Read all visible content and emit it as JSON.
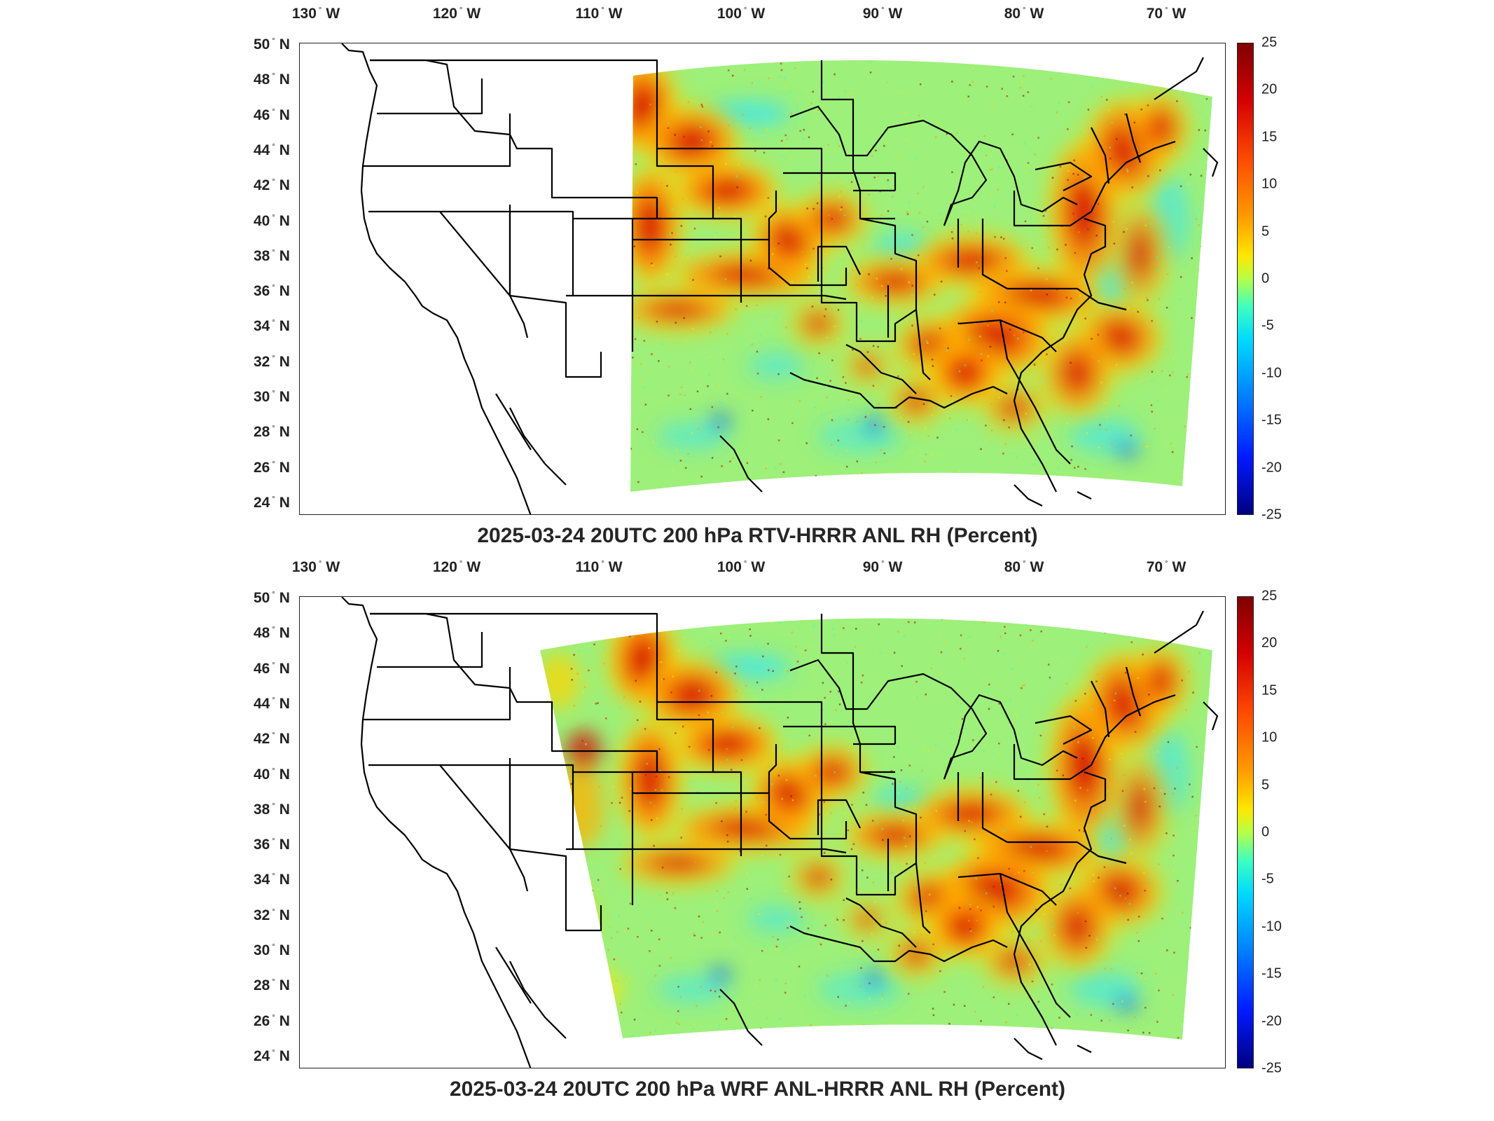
{
  "panels": [
    {
      "title": "2025-03-24 20UTC 200 hPa RTV-HRRR ANL RH (Percent)",
      "domain": "narrow"
    },
    {
      "title": "2025-03-24 20UTC 200 hPa WRF ANL-HRRR ANL RH (Percent)",
      "domain": "wide"
    }
  ],
  "axes": {
    "lon_labels": [
      {
        "deg": "130",
        "hem": "W"
      },
      {
        "deg": "120",
        "hem": "W"
      },
      {
        "deg": "110",
        "hem": "W"
      },
      {
        "deg": "100",
        "hem": "W"
      },
      {
        "deg": "90",
        "hem": "W"
      },
      {
        "deg": "80",
        "hem": "W"
      },
      {
        "deg": "70",
        "hem": "W"
      }
    ],
    "lat_labels": [
      {
        "deg": "50",
        "hem": "N"
      },
      {
        "deg": "48",
        "hem": "N"
      },
      {
        "deg": "46",
        "hem": "N"
      },
      {
        "deg": "44",
        "hem": "N"
      },
      {
        "deg": "42",
        "hem": "N"
      },
      {
        "deg": "40",
        "hem": "N"
      },
      {
        "deg": "38",
        "hem": "N"
      },
      {
        "deg": "36",
        "hem": "N"
      },
      {
        "deg": "34",
        "hem": "N"
      },
      {
        "deg": "32",
        "hem": "N"
      },
      {
        "deg": "30",
        "hem": "N"
      },
      {
        "deg": "28",
        "hem": "N"
      },
      {
        "deg": "26",
        "hem": "N"
      },
      {
        "deg": "24",
        "hem": "N"
      }
    ]
  },
  "colorbar": {
    "ticks": [
      "25",
      "20",
      "15",
      "10",
      "5",
      "0",
      "-5",
      "-10",
      "-15",
      "-20",
      "-25"
    ],
    "min": -25,
    "max": 25,
    "colormap": "jet"
  },
  "colors": {
    "background": "#ffffff",
    "outline": "#000000",
    "field_neutral": "#9df07a",
    "field_positive": "#d40000",
    "field_negative": "#0050ff"
  }
}
